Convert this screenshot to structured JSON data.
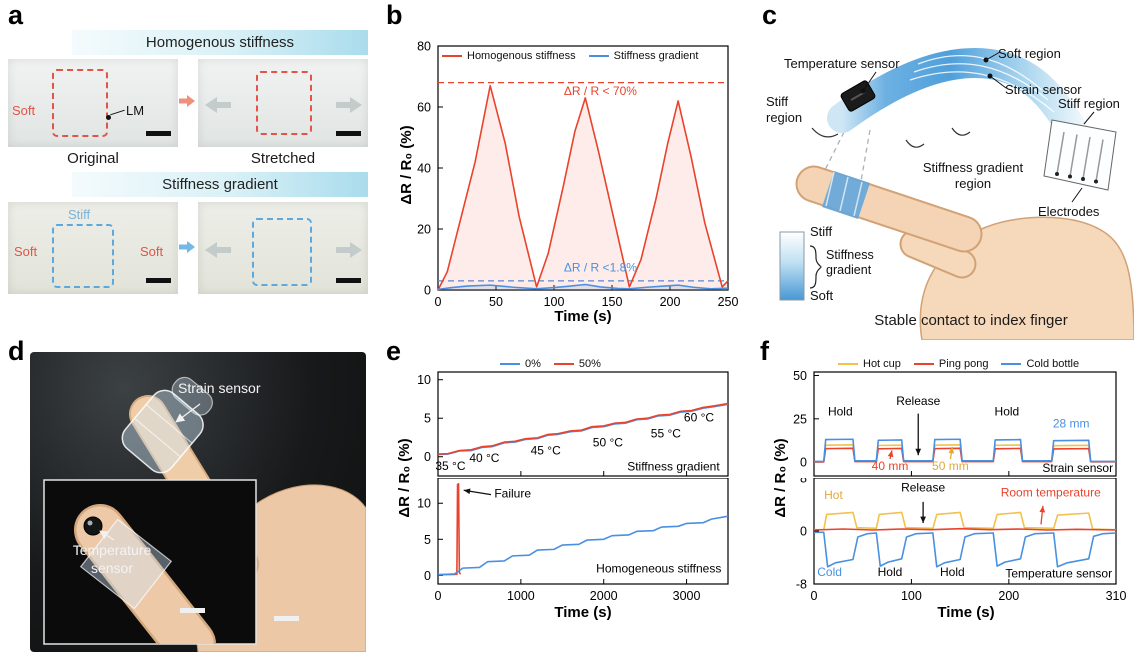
{
  "panels": {
    "a": {
      "letter": "a",
      "section1_title": "Homogenous  stiffness",
      "section2_title": "Stiffness gradient",
      "caption_left": "Original",
      "caption_right": "Stretched",
      "soft_label": "Soft",
      "stiff_label": "Stiff",
      "lm_label": "LM"
    },
    "b": {
      "letter": "b"
    },
    "c": {
      "letter": "c",
      "temperature_sensor": "Temperature sensor",
      "soft_region": "Soft region",
      "strain_sensor": "Strain sensor",
      "stiff_region_left": "Stiff\nregion",
      "stiff_region_right": "Stiff region",
      "gradient_region": "Stiffness gradient\nregion",
      "electrodes": "Electrodes",
      "bar_stiff": "Stiff",
      "bar_gradient": "Stiffness\ngradient",
      "bar_soft": "Soft",
      "caption": "Stable contact to index finger"
    },
    "d": {
      "letter": "d",
      "strain_sensor": "Strain sensor",
      "temperature_sensor": "Temperature\nsensor"
    },
    "e": {
      "letter": "e"
    },
    "f": {
      "letter": "f"
    }
  },
  "colors": {
    "red": "#e8432c",
    "blue": "#4a90e2",
    "yellow": "#f2c14e"
  },
  "chart_data": [
    {
      "id": "b",
      "type": "line",
      "xlabel": "Time (s)",
      "ylabel": "ΔR / R₀ (%)",
      "x_range": [
        0,
        250
      ],
      "y_range": [
        0,
        80
      ],
      "x_ticks": [
        0,
        50,
        100,
        150,
        200,
        250
      ],
      "y_ticks": [
        0,
        20,
        40,
        60,
        80
      ],
      "legend": [
        {
          "label": "Homogenous stiffness",
          "color": "#e8432c"
        },
        {
          "label": "Stiffness gradient",
          "color": "#4a90e2"
        }
      ],
      "dashed_lines": [
        {
          "y": 68,
          "color": "#e8432c"
        },
        {
          "y": 3,
          "color": "#4a90e2"
        }
      ],
      "series": [
        {
          "name": "Homogenous stiffness",
          "color": "#e8432c",
          "fill": "rgba(232,67,44,0.10)",
          "x": [
            0,
            8,
            20,
            32,
            45,
            58,
            70,
            85,
            95,
            108,
            118,
            127,
            138,
            150,
            165,
            175,
            188,
            198,
            207,
            218,
            230,
            245,
            250
          ],
          "y": [
            0,
            6,
            24,
            42,
            67,
            48,
            24,
            1,
            12,
            34,
            52,
            63,
            46,
            26,
            1,
            10,
            30,
            48,
            62,
            44,
            22,
            1,
            3
          ]
        },
        {
          "name": "Stiffness gradient",
          "color": "#4a90e2",
          "fill": "rgba(74,144,226,0.16)",
          "x": [
            0,
            12,
            25,
            45,
            65,
            85,
            100,
            112,
            127,
            140,
            155,
            165,
            180,
            195,
            207,
            220,
            235,
            250
          ],
          "y": [
            0.2,
            0.8,
            1.3,
            1.6,
            0.9,
            0.4,
            0.8,
            1.2,
            1.8,
            1.0,
            0.5,
            0.4,
            0.9,
            1.3,
            1.6,
            0.9,
            0.4,
            0.6
          ]
        }
      ],
      "annotations": [
        {
          "text": "ΔR / R < 70%",
          "x": 140,
          "y": 64,
          "color": "#e8432c",
          "anchor": "middle"
        },
        {
          "text": "ΔR / R <1.8%",
          "x": 140,
          "y": 6,
          "color": "#4a90e2",
          "anchor": "middle"
        }
      ]
    },
    {
      "id": "e_top",
      "type": "line",
      "ylabel": "ΔR / R₀ (%)",
      "x_range": [
        0,
        3500
      ],
      "y_range": [
        -2.5,
        11
      ],
      "x_ticks": [
        0,
        1000,
        2000,
        3000
      ],
      "y_ticks": [
        0,
        5,
        10
      ],
      "show_x_tick_labels": false,
      "legend": [
        {
          "label": "0%",
          "color": "#4a90e2"
        },
        {
          "label": "50%",
          "color": "#e8432c"
        }
      ],
      "series": [
        {
          "name": "0%",
          "color": "#4a90e2",
          "x": [
            0,
            120,
            260,
            400,
            530,
            650,
            800,
            930,
            1060,
            1200,
            1330,
            1450,
            1600,
            1730,
            1860,
            2000,
            2130,
            2260,
            2400,
            2530,
            2660,
            2800,
            2930,
            3060,
            3200,
            3330,
            3500
          ],
          "y": [
            0.3,
            0.35,
            0.75,
            0.8,
            1.2,
            1.3,
            1.8,
            1.9,
            2.25,
            2.35,
            2.8,
            2.9,
            3.25,
            3.35,
            3.8,
            3.9,
            4.25,
            4.35,
            4.8,
            4.9,
            5.3,
            5.4,
            5.8,
            5.9,
            6.3,
            6.5,
            6.8
          ]
        },
        {
          "name": "50%",
          "color": "#e8432c",
          "x": [
            0,
            120,
            260,
            400,
            530,
            650,
            800,
            930,
            1060,
            1200,
            1330,
            1450,
            1600,
            1730,
            1860,
            2000,
            2130,
            2260,
            2400,
            2530,
            2660,
            2800,
            2930,
            3060,
            3200,
            3330,
            3500
          ],
          "y": [
            0.35,
            0.4,
            0.8,
            0.9,
            1.3,
            1.4,
            1.9,
            2.0,
            2.35,
            2.45,
            2.9,
            3.0,
            3.35,
            3.45,
            3.9,
            4.0,
            4.35,
            4.45,
            4.9,
            5.0,
            5.4,
            5.5,
            5.9,
            6.0,
            6.4,
            6.6,
            6.9
          ]
        }
      ],
      "annotations": [
        {
          "text": "35 °C",
          "x": 150,
          "y": -1.7,
          "color": "#000"
        },
        {
          "text": "40 °C",
          "x": 560,
          "y": -0.7,
          "color": "#000"
        },
        {
          "text": "45 °C",
          "x": 1300,
          "y": 0.3,
          "color": "#000"
        },
        {
          "text": "50 °C",
          "x": 2050,
          "y": 1.3,
          "color": "#000"
        },
        {
          "text": "55 °C",
          "x": 2750,
          "y": 2.5,
          "color": "#000"
        },
        {
          "text": "60 °C",
          "x": 3150,
          "y": 4.6,
          "color": "#000"
        },
        {
          "text": "Stiffness gradient",
          "x": 3400,
          "y": -1.8,
          "color": "#000",
          "anchor": "end"
        }
      ]
    },
    {
      "id": "e_bottom",
      "type": "line",
      "xlabel": "Time (s)",
      "x_range": [
        0,
        3500
      ],
      "y_range": [
        -1.2,
        13.5
      ],
      "x_ticks": [
        0,
        1000,
        2000,
        3000
      ],
      "y_ticks": [
        0,
        5,
        10
      ],
      "series": [
        {
          "name": "50%",
          "color": "#e8432c",
          "x": [
            0,
            100,
            200,
            228,
            236,
            248,
            258,
            266,
            274
          ],
          "y": [
            0.1,
            0.1,
            0.12,
            0.15,
            12.6,
            12.7,
            0.4,
            0.25,
            0.2
          ]
        },
        {
          "name": "0%",
          "color": "#4a90e2",
          "x": [
            0,
            200,
            300,
            500,
            600,
            800,
            900,
            1100,
            1200,
            1400,
            1500,
            1700,
            1800,
            2000,
            2100,
            2300,
            2400,
            2600,
            2700,
            2900,
            3000,
            3200,
            3300,
            3450,
            3500
          ],
          "y": [
            0.1,
            0.2,
            1.0,
            1.1,
            1.9,
            2.0,
            2.7,
            2.8,
            3.5,
            3.6,
            4.2,
            4.3,
            4.9,
            5.0,
            5.5,
            5.6,
            6.1,
            6.2,
            6.7,
            6.8,
            7.2,
            7.3,
            7.8,
            8.1,
            8.2
          ]
        }
      ],
      "annotations": [
        {
          "text": "Failure",
          "x": 680,
          "y": 10.8,
          "color": "#000",
          "anchor": "start"
        },
        {
          "text": "Homogeneous stiffness",
          "x": 3420,
          "y": 0.4,
          "color": "#000",
          "anchor": "end"
        }
      ],
      "arrows": [
        {
          "x1": 640,
          "y1": 11.2,
          "x2": 310,
          "y2": 11.8,
          "color": "#111"
        }
      ]
    },
    {
      "id": "f_top",
      "type": "line",
      "ylabel": "ΔR / R₀ (%)",
      "x_range": [
        0,
        310
      ],
      "y_range": [
        -8,
        52
      ],
      "x_ticks": [
        0,
        100,
        200,
        310
      ],
      "y_ticks": [
        0,
        25,
        50
      ],
      "show_x_tick_labels": false,
      "legend": [
        {
          "label": "Hot cup",
          "color": "#f2c14e"
        },
        {
          "label": "Ping pong",
          "color": "#e8432c"
        },
        {
          "label": "Cold bottle",
          "color": "#4a90e2"
        }
      ],
      "series": [
        {
          "name": "Hot cup",
          "color": "#f2c14e",
          "x": [
            0,
            10,
            12,
            40,
            42,
            64,
            66,
            90,
            92,
            122,
            124,
            150,
            152,
            184,
            186,
            212,
            214,
            244,
            246,
            282,
            284,
            310
          ],
          "y": [
            0.2,
            0.2,
            9.8,
            10,
            0.5,
            0.5,
            9.6,
            9.8,
            0.5,
            0.5,
            9.8,
            10,
            0.5,
            0.5,
            9.7,
            9.9,
            0.5,
            0.5,
            9.5,
            9.7,
            0.3,
            0.3
          ]
        },
        {
          "name": "Ping pong",
          "color": "#e8432c",
          "x": [
            0,
            10,
            12,
            40,
            42,
            64,
            66,
            90,
            92,
            122,
            124,
            150,
            152,
            184,
            186,
            212,
            214,
            244,
            246,
            282,
            284,
            310
          ],
          "y": [
            0.1,
            0.1,
            7.8,
            8,
            0.3,
            0.3,
            7.7,
            7.9,
            0.3,
            0.3,
            7.8,
            8,
            0.3,
            0.3,
            7.7,
            7.9,
            0.3,
            0.3,
            7.6,
            7.8,
            0.2,
            0.2
          ]
        },
        {
          "name": "Cold bottle",
          "color": "#4a90e2",
          "x": [
            0,
            10,
            12,
            40,
            42,
            64,
            66,
            90,
            92,
            122,
            124,
            150,
            152,
            184,
            186,
            212,
            214,
            244,
            246,
            282,
            284,
            310
          ],
          "y": [
            0.4,
            0.4,
            13,
            13.2,
            0.8,
            0.8,
            12.6,
            12.8,
            0.8,
            0.8,
            13,
            13.2,
            0.8,
            0.8,
            12.8,
            13,
            0.8,
            0.8,
            12.4,
            12.6,
            0.4,
            0.4
          ]
        }
      ],
      "annotations": [
        {
          "text": "Hold",
          "x": 27,
          "y": 27,
          "color": "#000"
        },
        {
          "text": "Release",
          "x": 107,
          "y": 33,
          "color": "#000"
        },
        {
          "text": "Hold",
          "x": 198,
          "y": 27,
          "color": "#000"
        },
        {
          "text": "28 mm",
          "x": 264,
          "y": 20,
          "color": "#4a90e2"
        },
        {
          "text": "40 mm",
          "x": 78,
          "y": -4.5,
          "color": "#e8432c"
        },
        {
          "text": "50 mm",
          "x": 140,
          "y": -4.5,
          "color": "#e0a93a"
        },
        {
          "text": "Strain sensor",
          "x": 307,
          "y": -5.6,
          "color": "#000",
          "anchor": "end"
        }
      ],
      "arrows": [
        {
          "x1": 107,
          "y1": 28,
          "x2": 107,
          "y2": 4,
          "color": "#111"
        },
        {
          "x1": 78,
          "y1": 1.8,
          "x2": 80,
          "y2": 6.8,
          "color": "#e8432c"
        },
        {
          "x1": 140,
          "y1": 1.8,
          "x2": 142,
          "y2": 8.8,
          "color": "#e0a93a"
        }
      ]
    },
    {
      "id": "f_bottom",
      "type": "line",
      "xlabel": "Time (s)",
      "x_range": [
        0,
        310
      ],
      "y_range": [
        -8,
        8
      ],
      "x_ticks": [
        0,
        100,
        200,
        310
      ],
      "y_ticks": [
        -8,
        0,
        8
      ],
      "series": [
        {
          "name": "Hot cup",
          "color": "#f2c14e",
          "x": [
            0,
            10,
            13,
            40,
            44,
            64,
            67,
            90,
            94,
            122,
            126,
            150,
            154,
            184,
            188,
            212,
            216,
            246,
            250,
            282,
            286,
            310
          ],
          "y": [
            0.2,
            0.2,
            2.5,
            2.8,
            0.5,
            0.4,
            2.5,
            2.8,
            0.5,
            0.4,
            2.5,
            2.8,
            0.5,
            0.4,
            2.5,
            2.8,
            0.5,
            0.4,
            2.4,
            2.7,
            0.3,
            0.2
          ]
        },
        {
          "name": "Ping pong",
          "color": "#e8432c",
          "x": [
            0,
            30,
            60,
            90,
            120,
            150,
            180,
            210,
            240,
            270,
            310
          ],
          "y": [
            0.15,
            0.3,
            0.15,
            0.3,
            0.2,
            0.35,
            0.2,
            0.3,
            0.15,
            0.25,
            0.15
          ]
        },
        {
          "name": "Cold bottle",
          "color": "#4a90e2",
          "x": [
            0,
            10,
            14,
            22,
            40,
            45,
            55,
            64,
            68,
            76,
            90,
            95,
            105,
            122,
            126,
            134,
            150,
            155,
            165,
            184,
            188,
            196,
            212,
            217,
            227,
            246,
            250,
            260,
            282,
            287,
            297,
            310
          ],
          "y": [
            -0.2,
            -0.2,
            -5.4,
            -4.8,
            -4.3,
            -0.9,
            -0.4,
            -0.3,
            -5.3,
            -4.7,
            -4.2,
            -0.9,
            -0.4,
            -0.3,
            -5.4,
            -4.8,
            -4.3,
            -0.9,
            -0.4,
            -0.3,
            -5.3,
            -4.7,
            -4.2,
            -0.9,
            -0.4,
            -0.3,
            -5.4,
            -4.8,
            -4.2,
            -0.8,
            -0.4,
            -0.3
          ]
        }
      ],
      "annotations": [
        {
          "text": "Hot",
          "x": 20,
          "y": 4.8,
          "color": "#e0a93a"
        },
        {
          "text": "Release",
          "x": 112,
          "y": 6.0,
          "color": "#000"
        },
        {
          "text": "Room temperature",
          "x": 243,
          "y": 5.2,
          "color": "#e8432c"
        },
        {
          "text": "Cold",
          "x": 16,
          "y": -6.8,
          "color": "#4a90e2"
        },
        {
          "text": "Hold",
          "x": 78,
          "y": -6.8,
          "color": "#000"
        },
        {
          "text": "Hold",
          "x": 142,
          "y": -6.8,
          "color": "#000"
        },
        {
          "text": "Temperature sensor",
          "x": 306,
          "y": -7.0,
          "color": "#000",
          "anchor": "end"
        }
      ],
      "arrows": [
        {
          "x1": 112,
          "y1": 4.4,
          "x2": 112,
          "y2": 1.2,
          "color": "#111"
        },
        {
          "x1": 233,
          "y1": 1.0,
          "x2": 235,
          "y2": 3.8,
          "color": "#e8432c"
        }
      ]
    }
  ]
}
